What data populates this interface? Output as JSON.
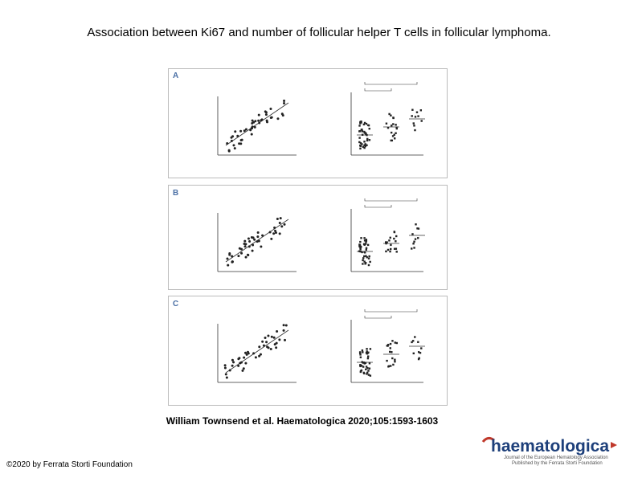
{
  "title": "Association between Ki67 and number of follicular helper T cells in follicular lymphoma.",
  "figure": {
    "panels": [
      "A",
      "B",
      "C"
    ]
  },
  "citation": "William Townsend et al. Haematologica 2020;105:1593-1603",
  "copyright": "©2020 by Ferrata Storti Foundation",
  "logo": "haematologica"
}
